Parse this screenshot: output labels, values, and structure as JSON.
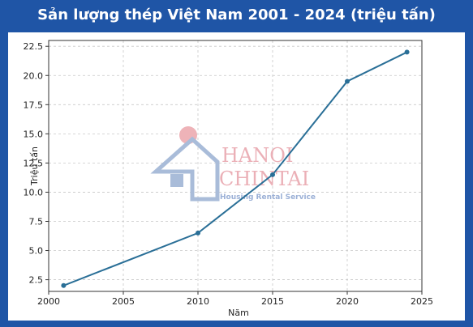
{
  "chart_data": {
    "type": "line",
    "title": "Sản lượng thép Việt Nam 2001 - 2024 (triệu tấn)",
    "xlabel": "Năm",
    "ylabel": "Triệu tấn",
    "x": [
      2001,
      2010,
      2015,
      2020,
      2024
    ],
    "series": [
      {
        "values": [
          2.0,
          6.5,
          11.5,
          19.5,
          22.0
        ]
      }
    ],
    "xlim": [
      2000,
      2025
    ],
    "ylim": [
      1.5,
      23.0
    ],
    "x_ticks": [
      "2000",
      "2005",
      "2010",
      "2015",
      "2020",
      "2025"
    ],
    "y_ticks": [
      "2.5",
      "5.0",
      "7.5",
      "10.0",
      "12.5",
      "15.0",
      "17.5",
      "20.0",
      "22.5"
    ],
    "grid": true,
    "line_color": "#2a6f97"
  },
  "watermark": {
    "brand_line1": "HANOI",
    "brand_line2": "CHINTAI",
    "tagline": "Housing Rental Service",
    "icon": "house-logo-icon"
  }
}
